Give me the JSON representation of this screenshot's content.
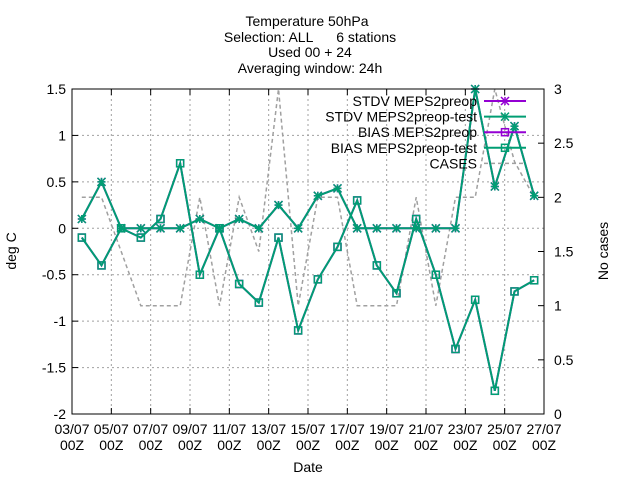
{
  "chart_data": {
    "type": "line",
    "title_lines": [
      "Temperature 50hPa",
      "Selection: ALL      6 stations",
      "Used 00 + 24",
      "Averaging window: 24h"
    ],
    "xlabel": "Date",
    "ylabel": "deg C",
    "y2label": "No cases",
    "ylim": [
      -2,
      1.5
    ],
    "y2lim": [
      0,
      3
    ],
    "yticks": [
      "-2",
      "-1.5",
      "-1",
      "-0.5",
      "0",
      "0.5",
      "1",
      "1.5"
    ],
    "y2ticks": [
      "0",
      "0.5",
      "1",
      "1.5",
      "2",
      "2.5",
      "3"
    ],
    "x_tick_labels": [
      "03/07",
      "05/07",
      "07/07",
      "09/07",
      "11/07",
      "13/07",
      "15/07",
      "17/07",
      "19/07",
      "21/07",
      "23/07",
      "25/07",
      "27/07"
    ],
    "x_tick_sub": "00Z",
    "xlim_days": [
      3,
      27
    ],
    "grid": true,
    "legend_position": "top-right",
    "x": [
      "2023-07-03 12Z",
      "2023-07-04 12Z",
      "2023-07-05 12Z",
      "2023-07-06 12Z",
      "2023-07-07 12Z",
      "2023-07-08 12Z",
      "2023-07-09 12Z",
      "2023-07-10 12Z",
      "2023-07-11 12Z",
      "2023-07-12 12Z",
      "2023-07-13 12Z",
      "2023-07-14 12Z",
      "2023-07-15 12Z",
      "2023-07-16 12Z",
      "2023-07-17 12Z",
      "2023-07-18 12Z",
      "2023-07-19 12Z",
      "2023-07-20 12Z",
      "2023-07-21 12Z",
      "2023-07-22 12Z",
      "2023-07-23 12Z",
      "2023-07-24 12Z",
      "2023-07-25 12Z",
      "2023-07-26 12Z"
    ],
    "series": [
      {
        "name": "STDV MEPS2preop",
        "axis": "y",
        "color": "#9400d3",
        "marker": "star",
        "values": [
          0.1,
          0.5,
          0.0,
          0.0,
          0.0,
          0.0,
          0.1,
          0.0,
          0.1,
          0.0,
          0.25,
          0.0,
          0.35,
          0.43,
          0.0,
          0.0,
          0.0,
          0.0,
          0.0,
          0.0,
          1.5,
          0.45,
          1.1,
          0.35
        ]
      },
      {
        "name": "STDV MEPS2preop-test",
        "axis": "y",
        "color": "#009e73",
        "marker": "star",
        "values": [
          0.1,
          0.5,
          0.0,
          0.0,
          0.0,
          0.0,
          0.1,
          0.0,
          0.1,
          0.0,
          0.25,
          0.0,
          0.35,
          0.43,
          0.0,
          0.0,
          0.0,
          0.0,
          0.0,
          0.0,
          1.5,
          0.45,
          1.1,
          0.35
        ]
      },
      {
        "name": "BIAS MEPS2preop",
        "axis": "y",
        "color": "#9400d3",
        "marker": "square",
        "values": [
          -0.1,
          -0.4,
          0.0,
          -0.1,
          0.1,
          0.7,
          -0.5,
          0.0,
          -0.6,
          -0.8,
          -0.1,
          -1.1,
          -0.55,
          -0.2,
          0.3,
          -0.4,
          -0.7,
          0.1,
          -0.5,
          -1.3,
          -0.77,
          -1.75,
          -0.68,
          -0.56
        ]
      },
      {
        "name": "BIAS MEPS2preop-test",
        "axis": "y",
        "color": "#009e73",
        "marker": "square",
        "values": [
          -0.1,
          -0.4,
          0.0,
          -0.1,
          0.1,
          0.7,
          -0.5,
          0.0,
          -0.6,
          -0.8,
          -0.1,
          -1.1,
          -0.55,
          -0.2,
          0.3,
          -0.4,
          -0.7,
          0.1,
          -0.5,
          -1.3,
          -0.77,
          -1.75,
          -0.68,
          -0.56
        ]
      },
      {
        "name": "CASES",
        "axis": "y2",
        "color": "#a0a0a0",
        "marker": "none",
        "dashed": true,
        "values": [
          2.0,
          2.0,
          1.5,
          1.0,
          1.0,
          1.0,
          2.0,
          1.0,
          2.0,
          1.5,
          3.0,
          1.0,
          2.0,
          2.0,
          1.0,
          1.0,
          1.0,
          2.0,
          1.0,
          2.0,
          2.0,
          3.0,
          2.33,
          2.0
        ]
      }
    ]
  }
}
